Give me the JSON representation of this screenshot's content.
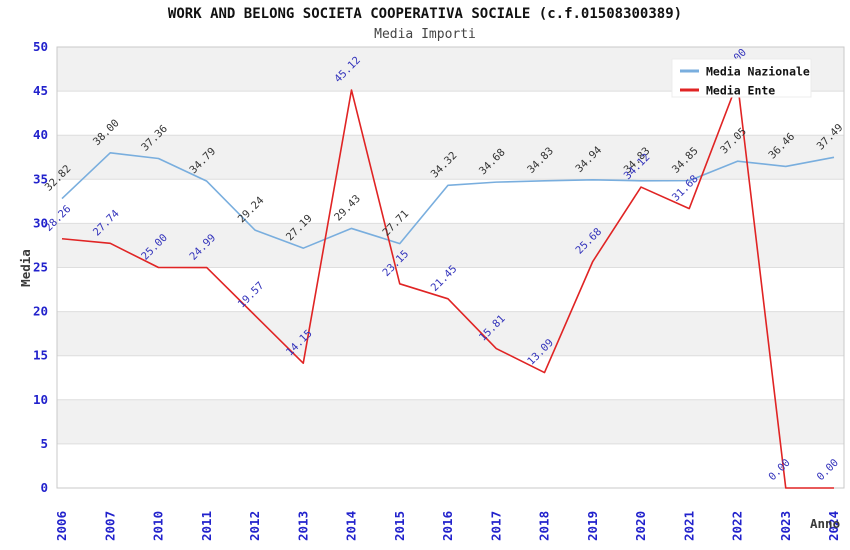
{
  "header": {
    "title": "WORK AND BELONG SOCIETA COOPERATIVA SOCIALE (c.f.01508300389)",
    "subtitle": "Media Importi"
  },
  "axes": {
    "y_label": "Media",
    "x_label": "Anno",
    "y_ticks": [
      0,
      5,
      10,
      15,
      20,
      25,
      30,
      35,
      40,
      45,
      50
    ]
  },
  "legend": {
    "position": "top-right",
    "items": [
      {
        "label": "Media Nazionale",
        "color": "#79aede"
      },
      {
        "label": "Media Ente",
        "color": "#e02424"
      }
    ]
  },
  "colors": {
    "nazionale_line": "#79aede",
    "ente_line": "#e02424",
    "tick_label": "#2222cc",
    "nazionale_data_label": "#333333",
    "ente_data_label": "#3333bb",
    "band_gray": "#f1f1f1",
    "gridline": "#dedede",
    "plot_border": "#c9c9c9",
    "axis_title": "#3a3a3a",
    "legend_text": "#111111",
    "legend_background": "#ffffff"
  },
  "chart_data": {
    "type": "line",
    "title": "WORK AND BELONG SOCIETA COOPERATIVA SOCIALE (c.f.01508300389)",
    "subtitle": "Media Importi",
    "xlabel": "Anno",
    "ylabel": "Media",
    "ylim": [
      0,
      50
    ],
    "ytick_step": 5,
    "grid": "horizontal-bands",
    "legend_position": "top-right",
    "categories": [
      "2006",
      "2007",
      "2010",
      "2011",
      "2012",
      "2013",
      "2014",
      "2015",
      "2016",
      "2017",
      "2018",
      "2019",
      "2020",
      "2021",
      "2022",
      "2023",
      "2024"
    ],
    "series": [
      {
        "name": "Media Nazionale",
        "color": "#79aede",
        "label_color": "#333333",
        "values": [
          32.82,
          38.0,
          37.36,
          34.79,
          29.24,
          27.19,
          29.43,
          27.71,
          34.32,
          34.68,
          34.83,
          34.94,
          34.83,
          34.85,
          37.05,
          36.46,
          37.49
        ],
        "label_hidden_indexes": []
      },
      {
        "name": "Media Ente",
        "color": "#e02424",
        "label_color": "#3333bb",
        "values": [
          28.26,
          27.74,
          25.0,
          24.99,
          19.57,
          14.15,
          45.12,
          23.15,
          21.45,
          15.81,
          13.09,
          25.68,
          34.12,
          31.68,
          46.0,
          0.0,
          0.0
        ],
        "label_hidden_indexes": [
          14
        ]
      }
    ]
  }
}
